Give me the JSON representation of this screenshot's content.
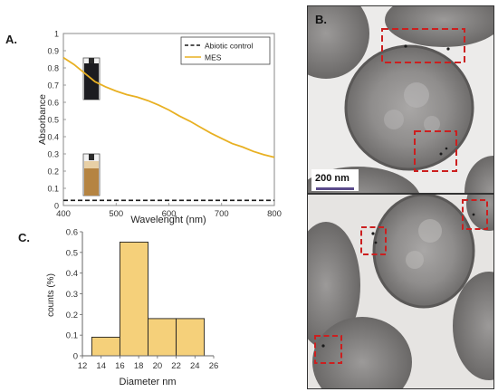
{
  "panels": {
    "a": "A.",
    "b": "B.",
    "c": "C."
  },
  "chart_data": [
    {
      "type": "line",
      "xlabel": "Wavelenght (nm)",
      "ylabel": "Absorbance",
      "xlim": [
        400,
        800
      ],
      "ylim": [
        0,
        1
      ],
      "xticks": [
        400,
        500,
        600,
        700,
        800
      ],
      "yticks": [
        0,
        0.1,
        0.2,
        0.3,
        0.4,
        0.5,
        0.6,
        0.7,
        0.8,
        0.9,
        1
      ],
      "legend_position": "top-right",
      "series": [
        {
          "name": "Abiotic control",
          "style": "dashed",
          "color": "#1a1a1a",
          "x": [
            400,
            500,
            600,
            700,
            800
          ],
          "y": [
            0.03,
            0.03,
            0.03,
            0.03,
            0.03
          ]
        },
        {
          "name": "MES",
          "style": "solid",
          "color": "#e8b022",
          "x": [
            400,
            420,
            440,
            460,
            480,
            500,
            520,
            540,
            560,
            580,
            600,
            620,
            640,
            660,
            680,
            700,
            720,
            740,
            760,
            780,
            800
          ],
          "y": [
            0.86,
            0.82,
            0.77,
            0.72,
            0.69,
            0.665,
            0.645,
            0.63,
            0.61,
            0.585,
            0.555,
            0.52,
            0.49,
            0.455,
            0.42,
            0.39,
            0.36,
            0.34,
            0.315,
            0.295,
            0.28
          ]
        }
      ]
    },
    {
      "type": "bar",
      "xlabel": "Diameter nm",
      "ylabel": "counts (%)",
      "xlim": [
        12,
        26
      ],
      "ylim": [
        0,
        0.6
      ],
      "xticks": [
        12,
        14,
        16,
        18,
        20,
        22,
        24,
        26
      ],
      "yticks": [
        0,
        0.1,
        0.2,
        0.3,
        0.4,
        0.5,
        0.6
      ],
      "bin_edges": [
        13,
        16,
        19,
        22,
        25
      ],
      "values": [
        0.09,
        0.55,
        0.18,
        0.18
      ],
      "color": "#f5d07a"
    }
  ],
  "tem": {
    "scale_bar_label": "200 nm"
  },
  "colors": {
    "mes_line": "#e8b022",
    "bars": "#f5d07a",
    "roi_boxes": "#cc1f1f",
    "scale_bar": "#5a4a8a"
  }
}
